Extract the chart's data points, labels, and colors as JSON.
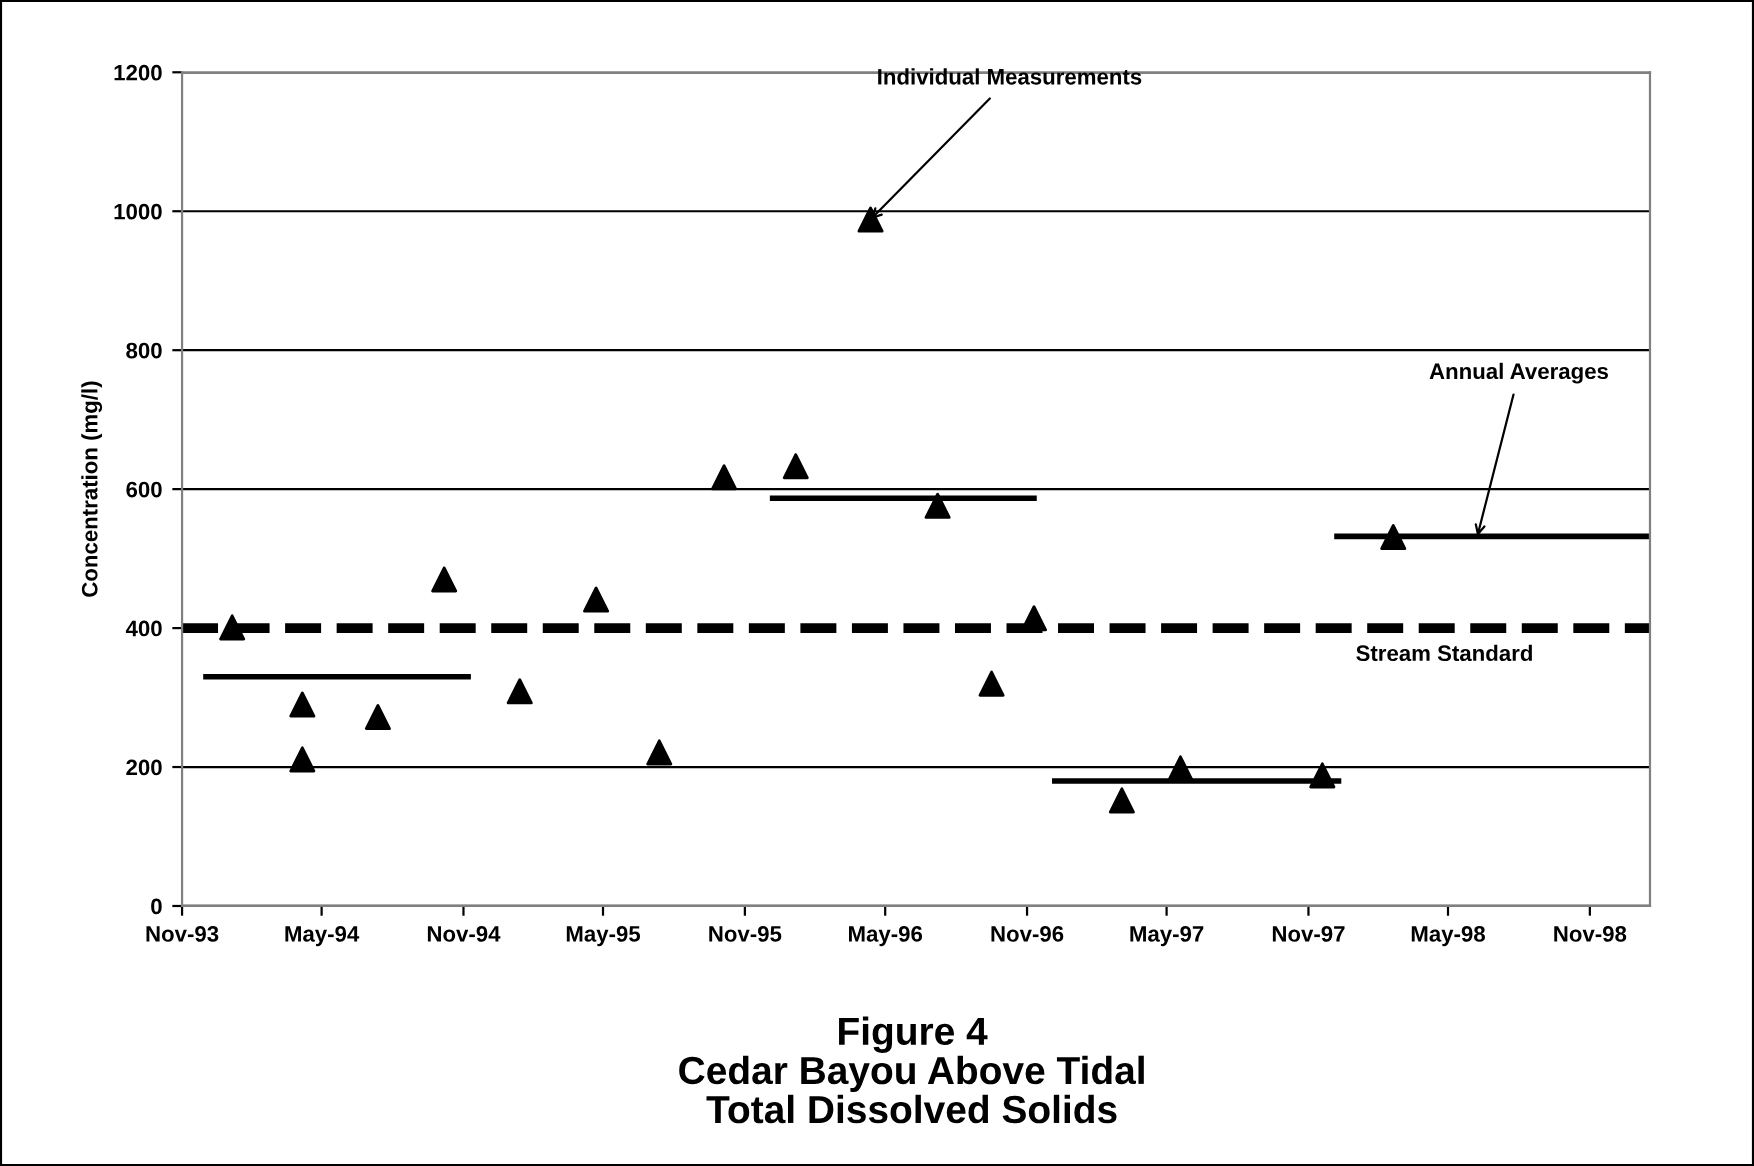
{
  "chart_data": {
    "type": "scatter",
    "title": "Figure 4\nCedar Bayou Above Tidal\nTotal Dissolved Solids",
    "ylabel": "Concentration (mg/l)",
    "series": [
      {
        "color": "#000000",
        "marker": "triangle",
        "x": [
          "1994-01-05",
          "1994-04-06",
          "1994-04-06",
          "1994-07-13",
          "1994-10-07",
          "1995-01-13",
          "1995-04-22",
          "1995-07-13",
          "1995-10-05",
          "1996-01-06",
          "1996-04-12",
          "1996-07-08",
          "1996-09-16",
          "1996-11-10",
          "1997-03-04",
          "1997-05-19",
          "1997-11-19",
          "1998-02-19"
        ],
        "values": [
          401,
          290,
          211,
          272,
          470,
          309,
          441,
          221,
          617,
          633,
          988,
          576,
          320,
          414,
          152,
          198,
          188,
          531
        ]
      },
      {
        "type": "line",
        "color": "#000000",
        "marker": "none",
        "x": [
          "1993-12-02",
          "1994-11-07"
        ],
        "values": [
          330,
          330
        ]
      },
      {
        "type": "line",
        "color": "#000000",
        "marker": "none",
        "x": [
          "1995-12-07",
          "1996-11-10"
        ],
        "values": [
          587,
          587
        ]
      },
      {
        "type": "line",
        "color": "#000000",
        "marker": "none",
        "x": [
          "1996-12-07",
          "1997-12-10"
        ],
        "values": [
          180,
          180
        ]
      },
      {
        "type": "line",
        "color": "#000000",
        "marker": "none",
        "x": [
          "1997-12-08",
          "1999-01-13"
        ],
        "values": [
          532,
          532
        ]
      }
    ],
    "ref_lines": [
      {
        "axis": "y",
        "value": 400,
        "label": "Stream Standard",
        "color": "#000000",
        "line_style": "dashed"
      }
    ],
    "annotations": [
      {
        "text": "Individual Measurements",
        "x": "1996-04-12",
        "y": 988
      },
      {
        "text": "Annual Averages",
        "x": "1998-06-08",
        "y": 532
      }
    ],
    "xlim": [
      "1993-11-01",
      "1999-01-18"
    ],
    "xticks": [
      {
        "value": "1993-11-01",
        "label": "Nov-93"
      },
      {
        "value": "1994-05-01",
        "label": "May-94"
      },
      {
        "value": "1994-11-01",
        "label": "Nov-94"
      },
      {
        "value": "1995-05-01",
        "label": "May-95"
      },
      {
        "value": "1995-11-01",
        "label": "Nov-95"
      },
      {
        "value": "1996-05-01",
        "label": "May-96"
      },
      {
        "value": "1996-11-01",
        "label": "Nov-96"
      },
      {
        "value": "1997-05-01",
        "label": "May-97"
      },
      {
        "value": "1997-11-01",
        "label": "Nov-97"
      },
      {
        "value": "1998-05-01",
        "label": "May-98"
      },
      {
        "value": "1998-11-01",
        "label": "Nov-98"
      }
    ],
    "ylim": [
      0,
      1200
    ],
    "yticks": [
      0,
      200,
      400,
      600,
      800,
      1000,
      1200
    ],
    "grid": "y",
    "legend": false
  }
}
